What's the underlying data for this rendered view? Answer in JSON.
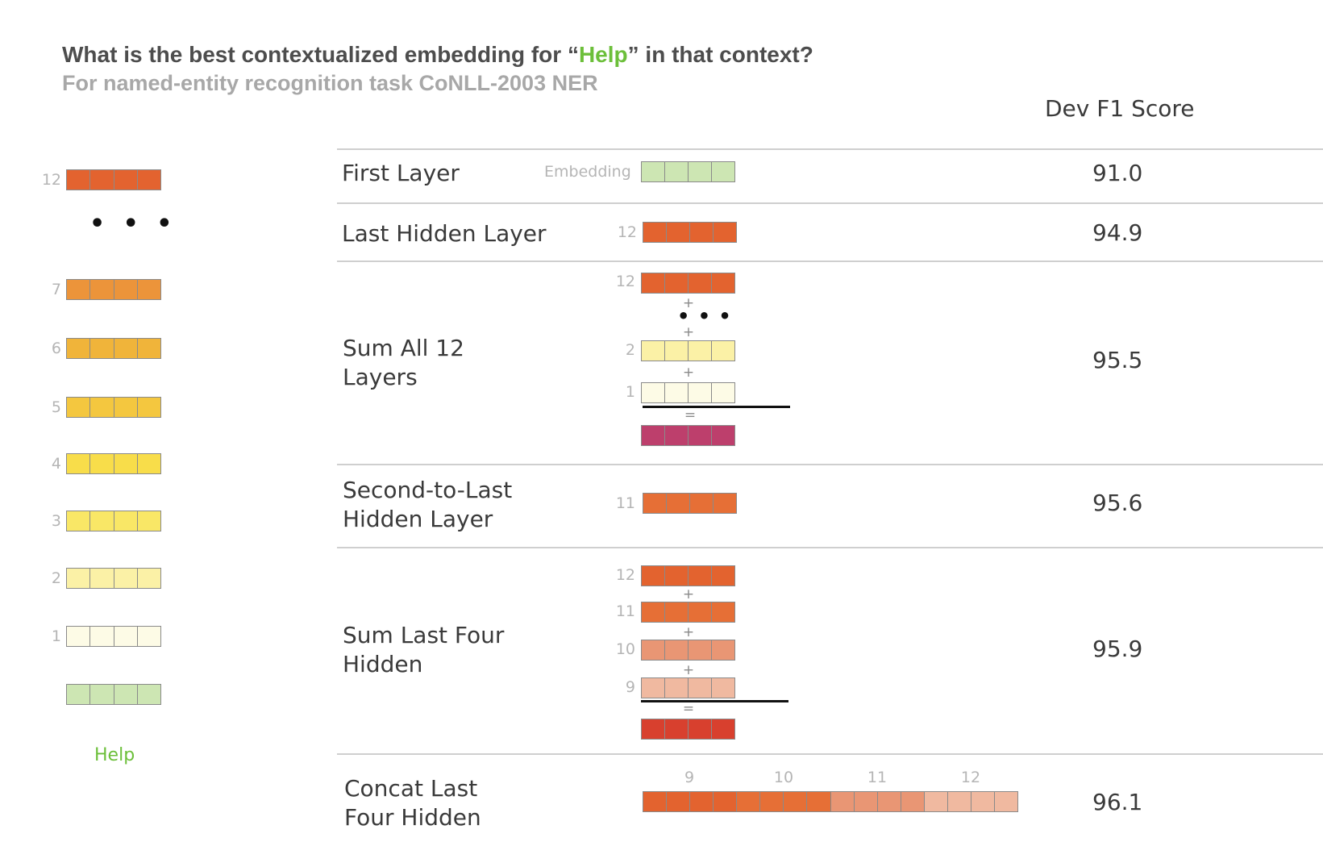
{
  "header": {
    "title_before": "What is the best contextualized embedding for “",
    "title_highlight": "Help",
    "title_after": "” in that context?",
    "subtitle": "For named-entity recognition task CoNLL-2003 NER",
    "column_header": "Dev F1 Score"
  },
  "colors": {
    "layer_12": "#e3632f",
    "layer_11": "#e66f36",
    "layer_10": "#e99674",
    "layer_9": "#f0b9a0",
    "layer_7": "#ec943a",
    "layer_6": "#f0b43a",
    "layer_5": "#f4c73f",
    "layer_4": "#f8dd4a",
    "layer_3": "#f9e766",
    "layer_2": "#fbf1a6",
    "layer_1": "#fdfbe6",
    "embedding": "#cde6b3",
    "sum_all_result": "#bd3f6c",
    "sum_four_result": "#d8402e",
    "accent_green": "#6cbf3a"
  },
  "stack": {
    "labels": [
      "12",
      "7",
      "6",
      "5",
      "4",
      "3",
      "2",
      "1"
    ],
    "word": "Help"
  },
  "rows": [
    {
      "label": "First Layer",
      "score": "91.0",
      "tag": "Embedding"
    },
    {
      "label": "Last Hidden Layer",
      "score": "94.9",
      "layer_labels": [
        "12"
      ]
    },
    {
      "label": "Sum All 12\nLayers",
      "score": "95.5",
      "layer_labels": [
        "12",
        "2",
        "1"
      ]
    },
    {
      "label": "Second-to-Last\nHidden Layer",
      "score": "95.6",
      "layer_labels": [
        "11"
      ]
    },
    {
      "label": "Sum Last Four\nHidden",
      "score": "95.9",
      "layer_labels": [
        "12",
        "11",
        "10",
        "9"
      ]
    },
    {
      "label": "Concat Last\nFour Hidden",
      "score": "96.1",
      "layer_labels": [
        "9",
        "10",
        "11",
        "12"
      ]
    }
  ],
  "ops": {
    "plus": "+",
    "equals": "=",
    "ellipsis": "• • •"
  }
}
